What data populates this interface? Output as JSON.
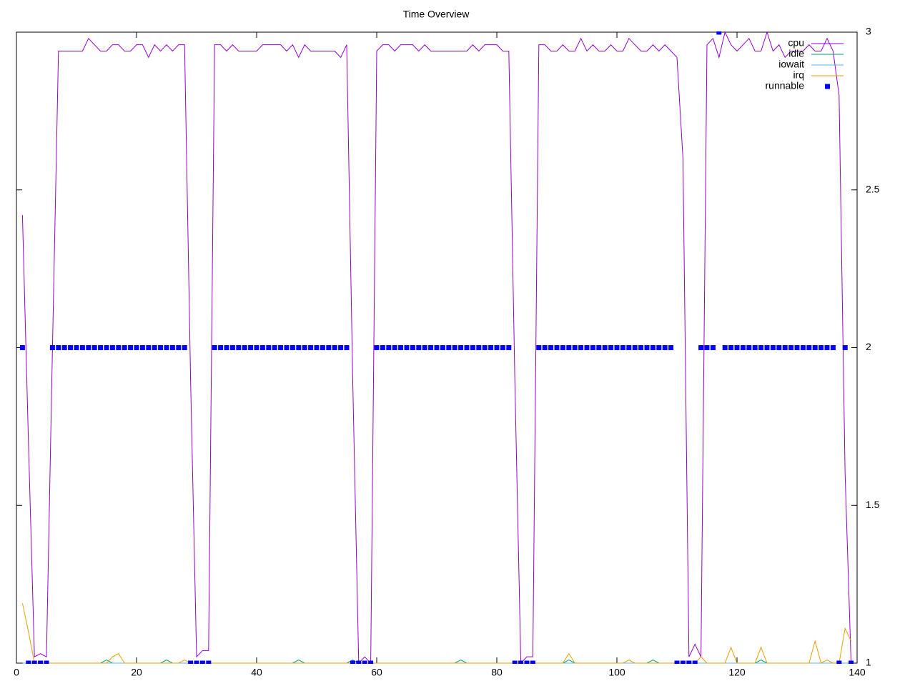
{
  "chart_data": {
    "type": "line",
    "title": "Time Overview",
    "x": [
      1,
      2,
      3,
      4,
      5,
      6,
      7,
      8,
      9,
      10,
      11,
      12,
      13,
      14,
      15,
      16,
      17,
      18,
      19,
      20,
      21,
      22,
      23,
      24,
      25,
      26,
      27,
      28,
      29,
      30,
      31,
      32,
      33,
      34,
      35,
      36,
      37,
      38,
      39,
      40,
      41,
      42,
      43,
      44,
      45,
      46,
      47,
      48,
      49,
      50,
      51,
      52,
      53,
      54,
      55,
      56,
      57,
      58,
      59,
      60,
      61,
      62,
      63,
      64,
      65,
      66,
      67,
      68,
      69,
      70,
      71,
      72,
      73,
      74,
      75,
      76,
      77,
      78,
      79,
      80,
      81,
      82,
      83,
      84,
      85,
      86,
      87,
      88,
      89,
      90,
      91,
      92,
      93,
      94,
      95,
      96,
      97,
      98,
      99,
      100,
      101,
      102,
      103,
      104,
      105,
      106,
      107,
      108,
      109,
      110,
      111,
      112,
      113,
      114,
      115,
      116,
      117,
      118,
      119,
      120,
      121,
      122,
      123,
      124,
      125,
      126,
      127,
      128,
      129,
      130,
      131,
      132,
      133,
      134,
      135,
      136,
      137,
      138,
      139
    ],
    "series": [
      {
        "name": "cpu",
        "color": "#9400d3",
        "style": "line",
        "values": [
          2.42,
          1.7,
          1.02,
          1.03,
          1.02,
          2.0,
          2.94,
          2.94,
          2.94,
          2.94,
          2.94,
          2.98,
          2.96,
          2.94,
          2.94,
          2.96,
          2.96,
          2.94,
          2.94,
          2.96,
          2.96,
          2.92,
          2.96,
          2.94,
          2.96,
          2.94,
          2.96,
          2.96,
          1.9,
          1.02,
          1.04,
          1.04,
          2.96,
          2.96,
          2.94,
          2.96,
          2.94,
          2.94,
          2.94,
          2.94,
          2.96,
          2.96,
          2.96,
          2.96,
          2.94,
          2.96,
          2.92,
          2.96,
          2.94,
          2.94,
          2.94,
          2.94,
          2.94,
          2.92,
          2.96,
          1.9,
          1.0,
          1.02,
          1.0,
          2.94,
          2.96,
          2.96,
          2.94,
          2.96,
          2.96,
          2.96,
          2.94,
          2.96,
          2.94,
          2.94,
          2.94,
          2.94,
          2.94,
          2.94,
          2.94,
          2.96,
          2.94,
          2.96,
          2.96,
          2.96,
          2.94,
          2.94,
          1.9,
          1.0,
          1.02,
          1.02,
          2.96,
          2.96,
          2.94,
          2.94,
          2.96,
          2.94,
          2.94,
          2.98,
          2.94,
          2.96,
          2.94,
          2.94,
          2.96,
          2.94,
          2.94,
          2.98,
          2.96,
          2.94,
          2.94,
          2.96,
          2.94,
          2.96,
          2.94,
          2.92,
          2.6,
          1.02,
          1.06,
          1.02,
          2.96,
          2.98,
          2.92,
          3.0,
          2.96,
          2.94,
          2.96,
          2.98,
          2.94,
          2.94,
          3.0,
          2.94,
          2.96,
          2.92,
          2.94,
          2.94,
          2.94,
          2.96,
          2.94,
          2.94,
          2.98,
          2.94,
          2.8,
          1.6,
          1.0
        ]
      },
      {
        "name": "idle",
        "color": "#009e73",
        "style": "line",
        "values": [
          1,
          1,
          1,
          1,
          1,
          1,
          1,
          1,
          1,
          1,
          1,
          1,
          1,
          1,
          1.01,
          1,
          1,
          1,
          1,
          1,
          1,
          1,
          1,
          1,
          1.01,
          1,
          1,
          1,
          1,
          1,
          1,
          1,
          1,
          1,
          1,
          1,
          1,
          1,
          1,
          1,
          1,
          1,
          1,
          1,
          1,
          1,
          1.01,
          1,
          1,
          1,
          1,
          1,
          1,
          1,
          1,
          1.01,
          1,
          1,
          1,
          1,
          1,
          1,
          1,
          1,
          1,
          1,
          1,
          1,
          1,
          1,
          1,
          1,
          1,
          1.01,
          1,
          1,
          1,
          1,
          1,
          1,
          1,
          1,
          1,
          1,
          1,
          1,
          1,
          1,
          1,
          1,
          1,
          1.01,
          1,
          1,
          1,
          1,
          1,
          1,
          1,
          1,
          1,
          1,
          1,
          1,
          1,
          1.01,
          1,
          1,
          1,
          1,
          1,
          1,
          1,
          1,
          1,
          1,
          1,
          1,
          1,
          1,
          1,
          1,
          1,
          1.01,
          1,
          1,
          1,
          1,
          1,
          1,
          1,
          1,
          1,
          1,
          1,
          1,
          1,
          1,
          1
        ]
      },
      {
        "name": "iowait",
        "color": "#56b4e9",
        "style": "line",
        "values": [
          1,
          1,
          1,
          1,
          1,
          1,
          1,
          1,
          1,
          1,
          1,
          1,
          1,
          1,
          1,
          1,
          1,
          1,
          1,
          1,
          1,
          1,
          1,
          1,
          1,
          1,
          1,
          1,
          1,
          1,
          1,
          1,
          1,
          1,
          1,
          1,
          1,
          1,
          1,
          1,
          1,
          1,
          1,
          1,
          1,
          1,
          1,
          1,
          1,
          1,
          1,
          1,
          1,
          1,
          1,
          1,
          1,
          1,
          1,
          1,
          1,
          1,
          1,
          1,
          1,
          1,
          1,
          1,
          1,
          1,
          1,
          1,
          1,
          1,
          1,
          1,
          1,
          1,
          1,
          1,
          1,
          1,
          1,
          1,
          1,
          1,
          1,
          1,
          1,
          1,
          1,
          1,
          1,
          1,
          1,
          1,
          1,
          1,
          1,
          1,
          1,
          1,
          1,
          1,
          1,
          1,
          1,
          1,
          1,
          1,
          1,
          1,
          1,
          1,
          1,
          1,
          1,
          1,
          1,
          1,
          1,
          1,
          1,
          1,
          1,
          1,
          1,
          1,
          1,
          1,
          1,
          1,
          1,
          1,
          1,
          1,
          1,
          1,
          1
        ]
      },
      {
        "name": "irq",
        "color": "#e69f00",
        "style": "line",
        "values": [
          1.19,
          1.1,
          1,
          1,
          1,
          1,
          1,
          1,
          1,
          1,
          1,
          1,
          1,
          1,
          1,
          1.02,
          1.03,
          1,
          1,
          1,
          1,
          1,
          1,
          1,
          1,
          1,
          1,
          1.01,
          1,
          1,
          1,
          1,
          1,
          1,
          1,
          1,
          1,
          1,
          1,
          1,
          1,
          1,
          1,
          1,
          1,
          1,
          1,
          1,
          1,
          1,
          1,
          1,
          1,
          1,
          1,
          1,
          1,
          1,
          1,
          1,
          1,
          1,
          1,
          1,
          1,
          1,
          1,
          1,
          1,
          1,
          1,
          1,
          1,
          1,
          1,
          1,
          1,
          1,
          1,
          1,
          1,
          1,
          1,
          1,
          1,
          1,
          1,
          1,
          1,
          1,
          1,
          1.03,
          1,
          1,
          1,
          1,
          1,
          1,
          1,
          1,
          1,
          1.01,
          1,
          1,
          1,
          1,
          1,
          1,
          1,
          1,
          1,
          1,
          1,
          1.02,
          1,
          1,
          1,
          1,
          1.05,
          1,
          1,
          1,
          1,
          1.05,
          1,
          1,
          1,
          1,
          1,
          1,
          1,
          1,
          1.07,
          1,
          1.01,
          1,
          1,
          1.11,
          1.07
        ]
      },
      {
        "name": "runnable",
        "color": "#0000ff",
        "style": "points",
        "values": [
          2,
          1,
          1,
          1,
          1,
          2,
          2,
          2,
          2,
          2,
          2,
          2,
          2,
          2,
          2,
          2,
          2,
          2,
          2,
          2,
          2,
          2,
          2,
          2,
          2,
          2,
          2,
          2,
          1,
          1,
          1,
          1,
          2,
          2,
          2,
          2,
          2,
          2,
          2,
          2,
          2,
          2,
          2,
          2,
          2,
          2,
          2,
          2,
          2,
          2,
          2,
          2,
          2,
          2,
          2,
          1,
          1,
          1,
          1,
          2,
          2,
          2,
          2,
          2,
          2,
          2,
          2,
          2,
          2,
          2,
          2,
          2,
          2,
          2,
          2,
          2,
          2,
          2,
          2,
          2,
          2,
          2,
          1,
          1,
          1,
          1,
          2,
          2,
          2,
          2,
          2,
          2,
          2,
          2,
          2,
          2,
          2,
          2,
          2,
          2,
          2,
          2,
          2,
          2,
          2,
          2,
          2,
          2,
          2,
          1,
          1,
          1,
          1,
          2,
          2,
          2,
          3,
          2,
          2,
          2,
          2,
          2,
          2,
          2,
          2,
          2,
          2,
          2,
          2,
          2,
          2,
          2,
          2,
          2,
          2,
          2,
          1,
          2,
          1
        ]
      }
    ],
    "xlim": [
      0,
      140
    ],
    "xticks": [
      0,
      20,
      40,
      60,
      80,
      100,
      120,
      140
    ],
    "ylim": [
      1,
      3
    ],
    "yticks": [
      1,
      1.5,
      2,
      2.5,
      3
    ],
    "grid": false,
    "legend": "top-right"
  }
}
